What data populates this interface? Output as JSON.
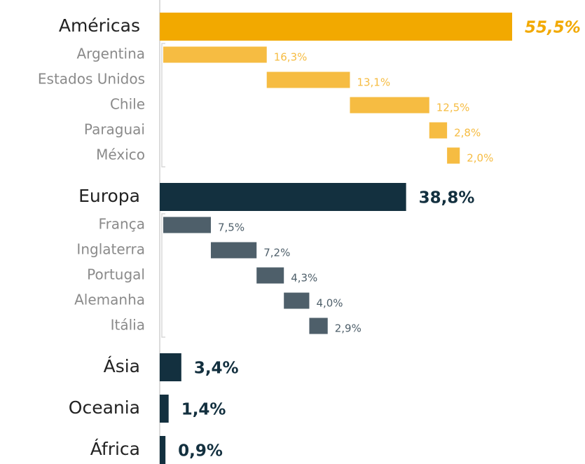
{
  "chart_data": {
    "type": "bar",
    "groups": [
      {
        "name": "Américas",
        "value": 55.5,
        "value_label": "55,5%",
        "color": "#f2a900",
        "item_color": "#f6bc42",
        "items": [
          {
            "name": "Argentina",
            "value": 16.3,
            "value_label": "16,3%"
          },
          {
            "name": "Estados Unidos",
            "value": 13.1,
            "value_label": "13,1%"
          },
          {
            "name": "Chile",
            "value": 12.5,
            "value_label": "12,5%"
          },
          {
            "name": "Paraguai",
            "value": 2.8,
            "value_label": "2,8%"
          },
          {
            "name": "México",
            "value": 2.0,
            "value_label": "2,0%"
          }
        ]
      },
      {
        "name": "Europa",
        "value": 38.8,
        "value_label": "38,8%",
        "color": "#13303f",
        "item_color": "#4e5f6a",
        "items": [
          {
            "name": "França",
            "value": 7.5,
            "value_label": "7,5%"
          },
          {
            "name": "Inglaterra",
            "value": 7.2,
            "value_label": "7,2%"
          },
          {
            "name": "Portugal",
            "value": 4.3,
            "value_label": "4,3%"
          },
          {
            "name": "Alemanha",
            "value": 4.0,
            "value_label": "4,0%"
          },
          {
            "name": "Itália",
            "value": 2.9,
            "value_label": "2,9%"
          }
        ]
      },
      {
        "name": "Ásia",
        "value": 3.4,
        "value_label": "3,4%",
        "color": "#13303f",
        "items": []
      },
      {
        "name": "Oceania",
        "value": 1.4,
        "value_label": "1,4%",
        "color": "#13303f",
        "items": []
      },
      {
        "name": "África",
        "value": 0.9,
        "value_label": "0,9%",
        "color": "#13303f",
        "items": []
      }
    ]
  }
}
